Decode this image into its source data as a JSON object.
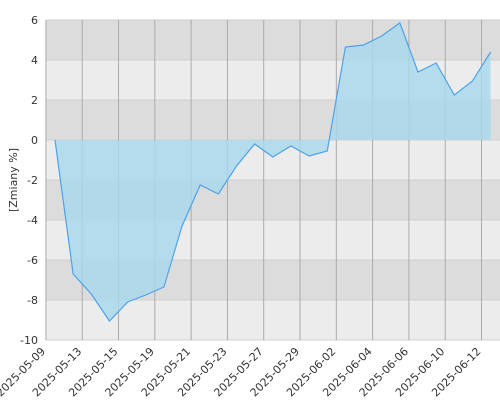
{
  "chart_data": {
    "type": "area",
    "y_label": "[Zmiany %]",
    "categories": [
      "2025-05-09",
      null,
      "2025-05-13",
      null,
      "2025-05-15",
      null,
      "2025-05-19",
      null,
      "2025-05-21",
      null,
      "2025-05-23",
      null,
      "2025-05-27",
      null,
      "2025-05-29",
      null,
      "2025-06-02",
      null,
      "2025-06-04",
      null,
      "2025-06-06",
      null,
      "2025-06-10",
      null,
      "2025-06-12"
    ],
    "values": [
      0,
      -6.7,
      -7.7,
      -9.05,
      -8.1,
      -7.75,
      -7.35,
      -4.3,
      -2.25,
      -2.7,
      -1.3,
      -0.2,
      -0.85,
      -0.3,
      -0.8,
      -0.55,
      4.65,
      4.75,
      5.2,
      5.85,
      3.4,
      3.85,
      2.25,
      2.95,
      4.4
    ],
    "color": "#4da3e8",
    "fill": "#a8d8ee",
    "ylim": [
      -10,
      6
    ],
    "yticks": [
      -10,
      -8,
      -6,
      -4,
      -2,
      0,
      2,
      4,
      6
    ],
    "grid": true
  }
}
